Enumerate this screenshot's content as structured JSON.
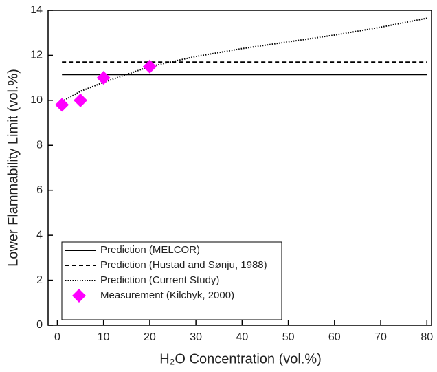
{
  "chart_data": {
    "type": "line",
    "xlabel": "H₂O Concentration (vol.%)",
    "ylabel": "Lower Flammability Limit (vol.%)",
    "xlim": [
      -2,
      81
    ],
    "ylim": [
      0,
      14
    ],
    "xticks": [
      0,
      10,
      20,
      30,
      40,
      50,
      60,
      70,
      80
    ],
    "yticks": [
      0,
      2,
      4,
      6,
      8,
      10,
      12,
      14
    ],
    "legend": "lower left",
    "series": [
      {
        "name": "Prediction (MELCOR)",
        "color": "#000000",
        "style": "solid",
        "x": [
          1,
          80
        ],
        "values": [
          11.15,
          11.15
        ]
      },
      {
        "name": "Prediction (Hustad and Sønju, 1988)",
        "color": "#000000",
        "style": "dashed",
        "x": [
          1,
          80
        ],
        "values": [
          11.7,
          11.7
        ]
      },
      {
        "name": "Prediction (Current Study)",
        "color": "#000000",
        "style": "dotted",
        "x": [
          1,
          5,
          10,
          15,
          20,
          30,
          40,
          50,
          60,
          70,
          80
        ],
        "values": [
          9.95,
          10.4,
          10.8,
          11.15,
          11.5,
          11.95,
          12.3,
          12.6,
          12.9,
          13.25,
          13.65
        ]
      },
      {
        "name": "Measurement (Kilchyk, 2000)",
        "color": "#ff00ff",
        "style": "marker",
        "x": [
          1,
          5,
          10,
          20
        ],
        "values": [
          9.8,
          10,
          11,
          11.5
        ]
      }
    ]
  }
}
